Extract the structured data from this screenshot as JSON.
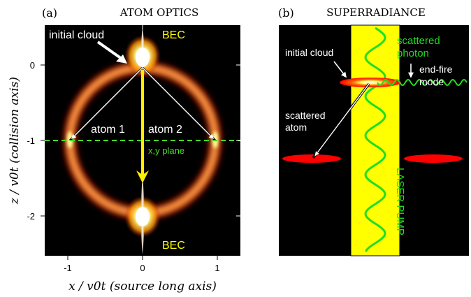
{
  "panel_a": {
    "label": "(a)",
    "title": "ATOM OPTICS",
    "labels": {
      "initial_cloud": "initial cloud",
      "bec_top": "BEC",
      "bec_bottom": "BEC",
      "atom1": "atom 1",
      "atom2": "atom 2",
      "xy_plane": "x,y plane"
    },
    "axes": {
      "xlabel": "x / v0t (source long axis)",
      "ylabel": "z / v0t (collision axis)",
      "xticks": [
        "-1",
        "0",
        "1"
      ],
      "yticks": [
        "0",
        "-1",
        "-2"
      ]
    },
    "colors": {
      "bec_label": "#ffff00",
      "plane_line": "#44dd22",
      "arrow": "#ffee00",
      "background": "#000000"
    }
  },
  "panel_b": {
    "label": "(b)",
    "title": "SUPERRADIANCE",
    "labels": {
      "initial_cloud": "initial cloud",
      "scattered_photon": "scattered photon",
      "end_fire_mode": "end-fire mode",
      "scattered_atom": "scattered atom",
      "laser_pump": "LASER PUMP"
    },
    "colors": {
      "pump_beam": "#ffff00",
      "wave": "#22dd22",
      "cloud": "#ff0000",
      "background": "#000000"
    }
  }
}
